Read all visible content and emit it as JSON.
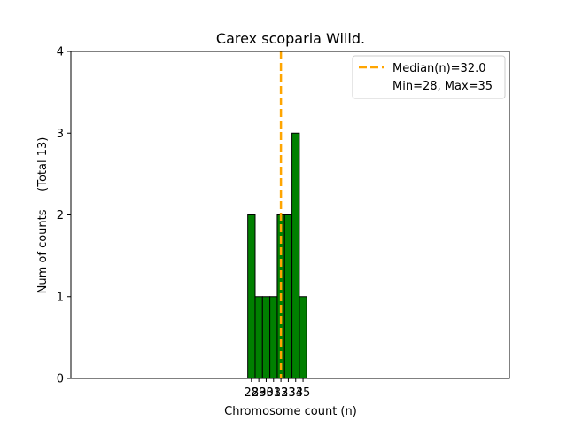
{
  "chart_data": {
    "type": "bar",
    "title": "Carex scoparia Willd.",
    "xlabel": "Chromosome count (n)",
    "ylabel": "Num of counts     (Total 13)",
    "x_tick_labels": [
      "28",
      "29",
      "30",
      "31",
      "32",
      "33",
      "34",
      "35"
    ],
    "categories": [
      28,
      29,
      30,
      31,
      32,
      33,
      34,
      35
    ],
    "values": [
      2,
      1,
      1,
      1,
      2,
      2,
      3,
      1
    ],
    "xlim": [
      3.5,
      63
    ],
    "ylim": [
      0,
      4
    ],
    "y_ticks": [
      "0",
      "1",
      "2",
      "3",
      "4"
    ],
    "bar_color": "#008000",
    "bar_edge_color": "#000000",
    "median": 32.0,
    "median_color": "#ffa500",
    "legend": {
      "placement": "top-right",
      "entries": [
        "Median(n)=32.0",
        "Min=28, Max=35"
      ]
    }
  }
}
